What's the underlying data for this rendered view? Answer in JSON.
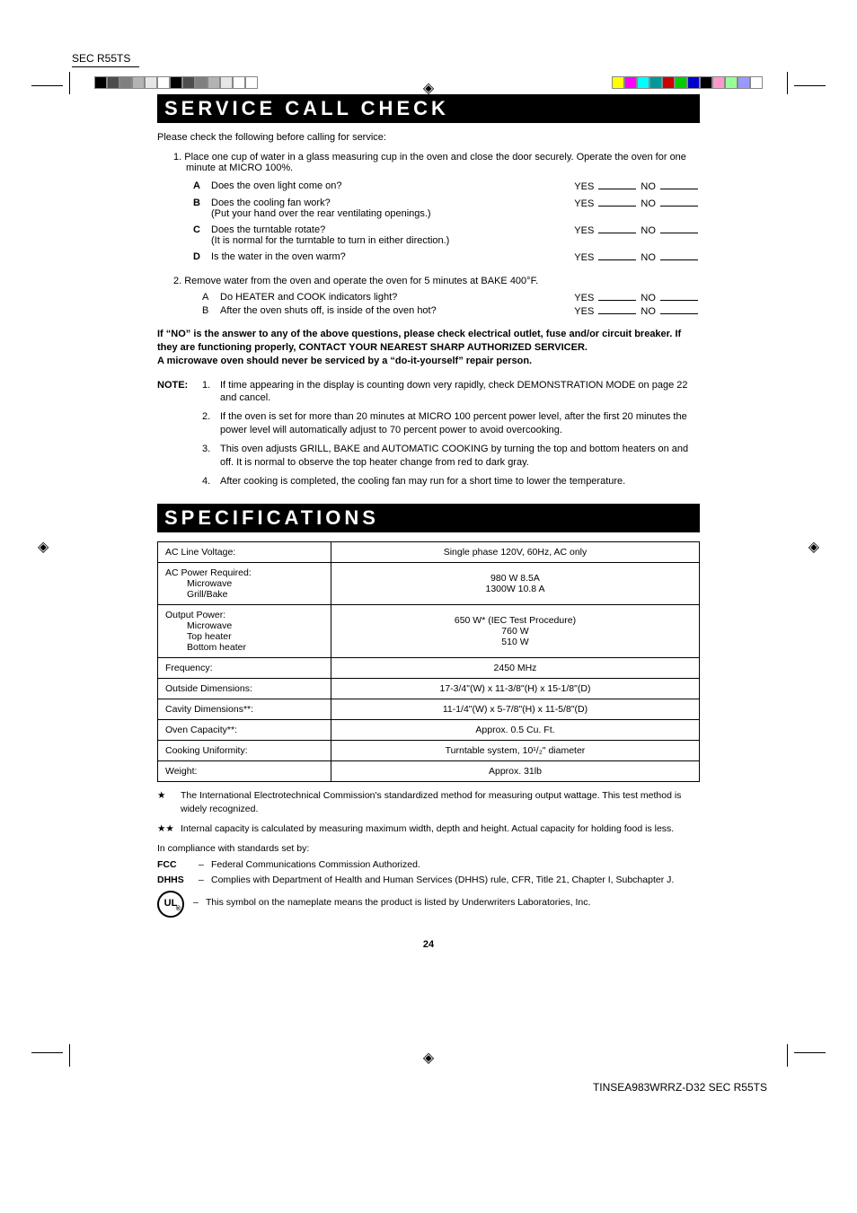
{
  "header_label": "SEC R55TS",
  "color_swatches_left": [
    "#000000",
    "#4d4d4d",
    "#808080",
    "#b3b3b3",
    "#e6e6e6",
    "#ffffff",
    "#000000",
    "#4d4d4d",
    "#808080",
    "#b3b3b3",
    "#e6e6e6",
    "#ffffff",
    "#ffffff"
  ],
  "color_swatches_right": [
    "#ffff00",
    "#ff00ff",
    "#00ffff",
    "#009999",
    "#cc0000",
    "#00cc00",
    "#0000cc",
    "#000000",
    "#ff99cc",
    "#99ff99",
    "#9999ff",
    "#ffffff"
  ],
  "svc": {
    "title": "SERVICE CALL CHECK",
    "intro": "Please check the following before calling for service:",
    "step1": "1.  Place one cup of water in a glass measuring cup in the oven and close the door securely. Operate the oven for one minute at MICRO 100%.",
    "items": [
      {
        "lbl": "A",
        "q": "Does the oven light come on?"
      },
      {
        "lbl": "B",
        "q": "Does the cooling fan work?",
        "q2": "(Put your hand over the rear ventilating openings.)"
      },
      {
        "lbl": "C",
        "q": "Does the turntable rotate?",
        "q2": "(It is normal for the turntable to turn in either direction.)"
      },
      {
        "lbl": "D",
        "q": "Is the water in the oven warm?"
      }
    ],
    "yes": "YES",
    "no": "NO",
    "step2": "2.  Remove water from the oven and operate the oven for 5 minutes at BAKE 400°F.",
    "sub": [
      {
        "lbl": "A",
        "q": "Do HEATER and COOK indicators light?"
      },
      {
        "lbl": "B",
        "q": "After the oven shuts off, is inside of the oven hot?"
      }
    ],
    "bold": "If “NO” is the answer to any of the above questions, please check electrical outlet, fuse and/or circuit breaker. If they are functioning properly, CONTACT YOUR NEAREST SHARP AUTHORIZED SERVICER.\nA microwave oven should never be serviced by a “do-it-yourself” repair person.",
    "note_label": "NOTE:",
    "notes": [
      "If time appearing in the display is counting down very rapidly, check DEMONSTRATION MODE on page 22 and cancel.",
      "If the oven is set for more than 20 minutes at MICRO 100 percent power level, after the first 20 minutes the power level will automatically adjust to 70 percent power to avoid overcooking.",
      "This oven adjusts GRILL, BAKE and AUTOMATIC COOKING by turning the top and bottom heaters on and off.  It is normal to observe the top heater change from red to dark gray.",
      "After cooking is completed, the cooling fan may run for a short time to lower the temperature."
    ]
  },
  "spec": {
    "title": "SPECIFICATIONS",
    "rows": [
      {
        "k": "AC Line Voltage:",
        "v": "Single phase 120V, 60Hz, AC only"
      },
      {
        "k": "AC Power Required:",
        "k_sub": [
          "Microwave",
          "Grill/Bake"
        ],
        "v": "980 W   8.5A\n1300W   10.8 A"
      },
      {
        "k": "Output Power:",
        "k_sub": [
          "Microwave",
          "Top heater",
          "Bottom heater"
        ],
        "v": "650 W* (IEC Test Procedure)\n760 W\n510 W"
      },
      {
        "k": "Frequency:",
        "v": "2450 MHz"
      },
      {
        "k": "Outside Dimensions:",
        "v": "17-3/4\"(W) x 11-3/8\"(H) x 15-1/8\"(D)"
      },
      {
        "k": "Cavity Dimensions**:",
        "v": "11-1/4\"(W) x 5-7/8\"(H) x 11-5/8\"(D)"
      },
      {
        "k": "Oven Capacity**:",
        "v": "Approx. 0.5 Cu. Ft."
      },
      {
        "k": "Cooking Uniformity:",
        "v": "Turntable system, 10¹/₂\" diameter"
      },
      {
        "k": "Weight:",
        "v": "Approx. 31lb"
      }
    ],
    "fn1_sym": "★",
    "fn1": "The International Electrotechnical Commission's standardized method for measuring output wattage. This test method is widely recognized.",
    "fn2_sym": "★★",
    "fn2": "Internal capacity is calculated by measuring maximum width, depth and height.  Actual capacity for holding food is less.",
    "compliance_intro": "In compliance with standards set by:",
    "fcc_lbl": "FCC",
    "fcc_txt": "Federal Communications Commission Authorized.",
    "dhhs_lbl": "DHHS",
    "dhhs_txt": "Complies with Department of Health and Human Services (DHHS) rule, CFR, Title 21, Chapter I, Subchapter J.",
    "ul_txt": "This symbol on the nameplate means the product is listed by Underwriters Laboratories, Inc.",
    "ul_badge": "UL"
  },
  "page_num": "24",
  "footer_label": "TINSEA983WRRZ-D32 SEC R55TS"
}
